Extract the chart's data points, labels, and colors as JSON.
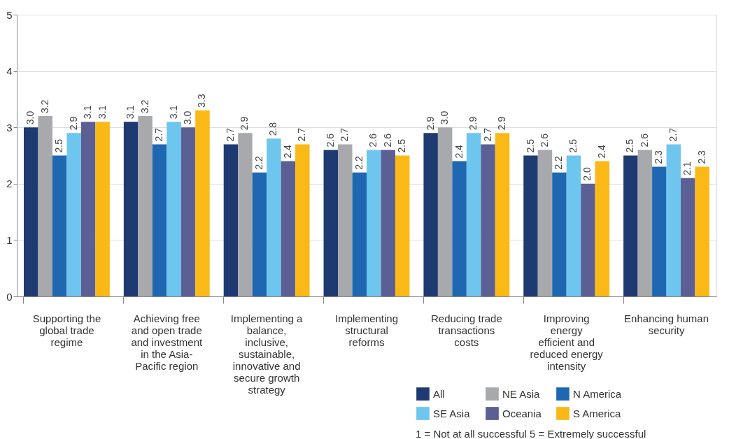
{
  "chart_data": {
    "type": "bar",
    "categories": [
      "Supporting the global trade regime",
      "Achieving free and open trade and investment in the Asia-Pacific region",
      "Implementing a balance, inclusive, sustainable, innovative and secure growth strategy",
      "Implementing structural reforms",
      "Reducing trade transactions costs",
      "Improving energy efficient and reduced energy intensity",
      "Enhancing human security"
    ],
    "series": [
      {
        "name": "All",
        "color": "#1f3a70",
        "values": [
          3.0,
          3.1,
          2.7,
          2.6,
          2.9,
          2.5,
          2.5
        ],
        "value_labels": [
          "3.0",
          "3.1",
          "2.7",
          "2.6",
          "2.9",
          "2.5",
          "2.5"
        ]
      },
      {
        "name": "NE Asia",
        "color": "#a7a9ac",
        "values": [
          3.2,
          3.2,
          2.9,
          2.7,
          3.0,
          2.6,
          2.6
        ],
        "value_labels": [
          "3.2",
          "3.2",
          "2.9",
          "2.7",
          "3.0",
          "2.6",
          "2.6"
        ]
      },
      {
        "name": "N America",
        "color": "#1f67b1",
        "values": [
          2.5,
          2.7,
          2.2,
          2.2,
          2.4,
          2.2,
          2.3
        ],
        "value_labels": [
          "2.5",
          "2.7",
          "2.2",
          "2.2",
          "2.4",
          "2.2",
          "2.3"
        ]
      },
      {
        "name": "SE Asia",
        "color": "#6ec6ee",
        "values": [
          2.9,
          3.1,
          2.8,
          2.6,
          2.9,
          2.5,
          2.7
        ],
        "value_labels": [
          "2.9",
          "3.1",
          "2.8",
          "2.6",
          "2.9",
          "2.5",
          "2.7"
        ]
      },
      {
        "name": "Oceania",
        "color": "#5c5f93",
        "values": [
          3.1,
          3.0,
          2.4,
          2.6,
          2.7,
          2.0,
          2.1
        ],
        "value_labels": [
          "3.1",
          "3.0",
          "2.4",
          "2.6",
          "2.7",
          "2.0",
          "2.1"
        ]
      },
      {
        "name": "S America",
        "color": "#fbb917",
        "values": [
          3.1,
          3.3,
          2.7,
          2.5,
          2.9,
          2.4,
          2.3
        ],
        "value_labels": [
          "3.1",
          "3.3",
          "2.7",
          "2.5",
          "2.9",
          "2.4",
          "2.3"
        ]
      }
    ],
    "ylim": [
      0,
      5
    ],
    "yticks": [
      0,
      1,
      2,
      3,
      4,
      5
    ],
    "grid": "y",
    "legend": "bottom right",
    "annotations": [
      "1 = Not at all successful    5 = Extremely successful"
    ]
  }
}
